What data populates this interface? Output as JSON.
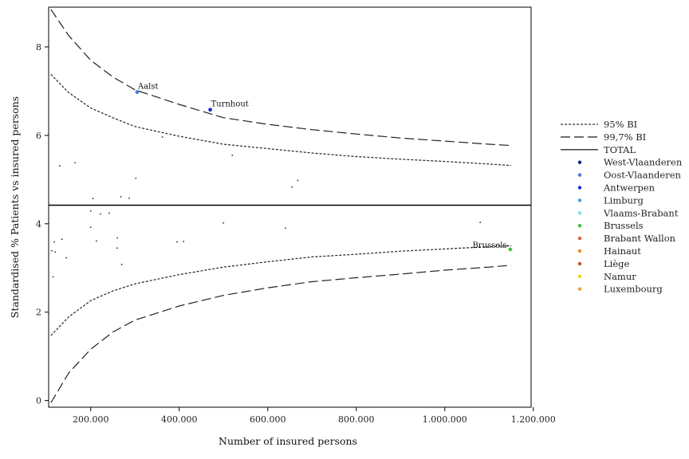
{
  "chart_data": {
    "type": "scatter",
    "xlabel": "Number of insured persons",
    "ylabel": "Standardised % Patients vs insured persons",
    "xlim": [
      105000,
      1195000
    ],
    "ylim": [
      -0.15,
      8.9
    ],
    "xticks": [
      200000,
      400000,
      600000,
      800000,
      1000000,
      1200000
    ],
    "xtick_labels": [
      "200.000",
      "400.000",
      "600.000",
      "800.000",
      "1.000.000",
      "1.200.000"
    ],
    "yticks": [
      0,
      2,
      4,
      6,
      8
    ],
    "ytick_labels": [
      "0",
      "2",
      "4",
      "6",
      "8"
    ],
    "grid": false,
    "legend_placement": "right",
    "total": 4.42,
    "lines": [
      {
        "name": "95% BI",
        "style": "dotted",
        "color": "#222222",
        "upper": [
          [
            110000,
            7.38
          ],
          [
            150000,
            6.97
          ],
          [
            200000,
            6.62
          ],
          [
            250000,
            6.4
          ],
          [
            300000,
            6.2
          ],
          [
            400000,
            5.98
          ],
          [
            500000,
            5.8
          ],
          [
            600000,
            5.7
          ],
          [
            700000,
            5.6
          ],
          [
            800000,
            5.52
          ],
          [
            900000,
            5.46
          ],
          [
            1000000,
            5.41
          ],
          [
            1100000,
            5.35
          ],
          [
            1150000,
            5.32
          ]
        ],
        "lower": [
          [
            110000,
            1.47
          ],
          [
            150000,
            1.89
          ],
          [
            200000,
            2.26
          ],
          [
            250000,
            2.48
          ],
          [
            300000,
            2.64
          ],
          [
            400000,
            2.85
          ],
          [
            500000,
            3.02
          ],
          [
            600000,
            3.14
          ],
          [
            700000,
            3.25
          ],
          [
            800000,
            3.31
          ],
          [
            900000,
            3.38
          ],
          [
            1000000,
            3.43
          ],
          [
            1100000,
            3.48
          ],
          [
            1150000,
            3.5
          ]
        ]
      },
      {
        "name": "99,7% BI",
        "style": "dashed",
        "color": "#222222",
        "upper": [
          [
            110000,
            8.85
          ],
          [
            150000,
            8.26
          ],
          [
            200000,
            7.7
          ],
          [
            250000,
            7.32
          ],
          [
            300000,
            7.03
          ],
          [
            400000,
            6.7
          ],
          [
            500000,
            6.4
          ],
          [
            600000,
            6.25
          ],
          [
            700000,
            6.13
          ],
          [
            800000,
            6.03
          ],
          [
            900000,
            5.94
          ],
          [
            1000000,
            5.87
          ],
          [
            1100000,
            5.8
          ],
          [
            1150000,
            5.77
          ]
        ],
        "lower": [
          [
            110000,
            -0.05
          ],
          [
            150000,
            0.62
          ],
          [
            200000,
            1.16
          ],
          [
            250000,
            1.55
          ],
          [
            300000,
            1.82
          ],
          [
            400000,
            2.14
          ],
          [
            500000,
            2.38
          ],
          [
            600000,
            2.55
          ],
          [
            700000,
            2.69
          ],
          [
            800000,
            2.78
          ],
          [
            900000,
            2.86
          ],
          [
            1000000,
            2.95
          ],
          [
            1100000,
            3.02
          ],
          [
            1150000,
            3.06
          ]
        ]
      }
    ],
    "labeled_points": [
      {
        "label": "Aalst",
        "x": 305000,
        "y": 6.98,
        "color": "#4a7bd4",
        "province": "Oost-Vlaanderen"
      },
      {
        "label": "Turnhout",
        "x": 470000,
        "y": 6.58,
        "color": "#1a2bd8",
        "province": "Antwerpen"
      },
      {
        "label": "Brussels-",
        "x": 1148000,
        "y": 3.42,
        "color": "#3cc43c",
        "province": "Brussels"
      }
    ],
    "other_points": [
      [
        130000,
        5.31
      ],
      [
        165000,
        5.38
      ],
      [
        205000,
        4.57
      ],
      [
        268000,
        4.61
      ],
      [
        287000,
        4.58
      ],
      [
        302000,
        5.03
      ],
      [
        362000,
        5.96
      ],
      [
        520000,
        5.55
      ],
      [
        655000,
        4.83
      ],
      [
        668000,
        4.98
      ],
      [
        200000,
        4.29
      ],
      [
        222000,
        4.22
      ],
      [
        242000,
        4.24
      ],
      [
        200000,
        3.92
      ],
      [
        260000,
        3.68
      ],
      [
        135000,
        3.65
      ],
      [
        118000,
        3.59
      ],
      [
        213000,
        3.61
      ],
      [
        112000,
        3.39
      ],
      [
        120000,
        3.36
      ],
      [
        145000,
        3.23
      ],
      [
        260000,
        3.45
      ],
      [
        270000,
        3.08
      ],
      [
        115000,
        2.8
      ],
      [
        395000,
        3.59
      ],
      [
        410000,
        3.6
      ],
      [
        500000,
        4.02
      ],
      [
        640000,
        3.9
      ],
      [
        1080000,
        4.03
      ]
    ],
    "legend": [
      {
        "type": "line",
        "style": "dotted",
        "label": "95% BI"
      },
      {
        "type": "line",
        "style": "dashed",
        "label": "99,7% BI"
      },
      {
        "type": "line",
        "style": "solid",
        "label": "TOTAL"
      },
      {
        "type": "point",
        "color": "#0b1f7a",
        "label": "West-Vlaanderen"
      },
      {
        "type": "point",
        "color": "#4a7bd4",
        "label": "Oost-Vlaanderen"
      },
      {
        "type": "point",
        "color": "#1a2bd8",
        "label": "Antwerpen"
      },
      {
        "type": "point",
        "color": "#3d9ee6",
        "label": "Limburg"
      },
      {
        "type": "point",
        "color": "#7ed8e8",
        "label": "Vlaams-Brabant"
      },
      {
        "type": "point",
        "color": "#3cc43c",
        "label": "Brussels"
      },
      {
        "type": "point",
        "color": "#d9603a",
        "label": "Brabant Wallon"
      },
      {
        "type": "point",
        "color": "#f28a1e",
        "label": "Hainaut"
      },
      {
        "type": "point",
        "color": "#c8502a",
        "label": "Liège"
      },
      {
        "type": "point",
        "color": "#f2d21e",
        "label": "Namur"
      },
      {
        "type": "point",
        "color": "#e8a030",
        "label": "Luxembourg"
      }
    ]
  }
}
